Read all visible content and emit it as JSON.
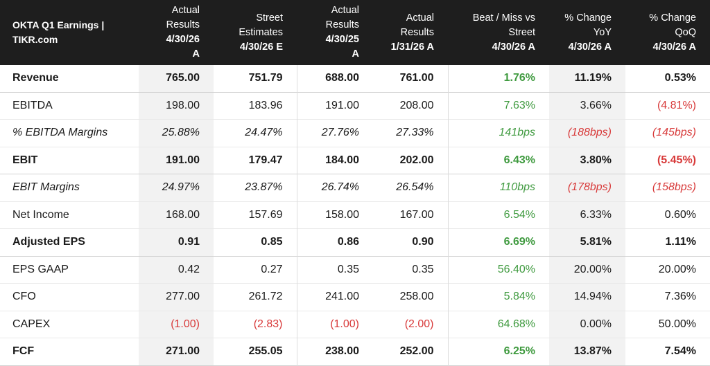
{
  "header": {
    "title_line1": "OKTA Q1 Earnings |",
    "title_line2": "TIKR.com",
    "columns": [
      {
        "line1": "Actual",
        "line2": "Results",
        "line3": "4/30/26",
        "line4": "A"
      },
      {
        "line1": "Street",
        "line2": "Estimates",
        "line3": "4/30/26 E",
        "line4": ""
      },
      {
        "line1": "Actual",
        "line2": "Results",
        "line3": "4/30/25",
        "line4": "A"
      },
      {
        "line1": "Actual",
        "line2": "Results",
        "line3": "1/31/26 A",
        "line4": ""
      },
      {
        "line1": "Beat / Miss vs",
        "line2": "Street",
        "line3": "4/30/26 A",
        "line4": ""
      },
      {
        "line1": "% Change",
        "line2": "YoY",
        "line3": "4/30/26 A",
        "line4": ""
      },
      {
        "line1": "% Change",
        "line2": "QoQ",
        "line3": "4/30/26 A",
        "line4": ""
      }
    ]
  },
  "rows": [
    {
      "label": "Revenue",
      "values": [
        "765.00",
        "751.79",
        "688.00",
        "761.00",
        "1.76%",
        "11.19%",
        "0.53%"
      ]
    },
    {
      "label": "EBITDA",
      "values": [
        "198.00",
        "183.96",
        "191.00",
        "208.00",
        "7.63%",
        "3.66%",
        "(4.81%)"
      ]
    },
    {
      "label": "% EBITDA Margins",
      "values": [
        "25.88%",
        "24.47%",
        "27.76%",
        "27.33%",
        "141bps",
        "(188bps)",
        "(145bps)"
      ]
    },
    {
      "label": "EBIT",
      "values": [
        "191.00",
        "179.47",
        "184.00",
        "202.00",
        "6.43%",
        "3.80%",
        "(5.45%)"
      ]
    },
    {
      "label": "EBIT Margins",
      "values": [
        "24.97%",
        "23.87%",
        "26.74%",
        "26.54%",
        "110bps",
        "(178bps)",
        "(158bps)"
      ]
    },
    {
      "label": "Net Income",
      "values": [
        "168.00",
        "157.69",
        "158.00",
        "167.00",
        "6.54%",
        "6.33%",
        "0.60%"
      ]
    },
    {
      "label": "Adjusted EPS",
      "values": [
        "0.91",
        "0.85",
        "0.86",
        "0.90",
        "6.69%",
        "5.81%",
        "1.11%"
      ]
    },
    {
      "label": "EPS GAAP",
      "values": [
        "0.42",
        "0.27",
        "0.35",
        "0.35",
        "56.40%",
        "20.00%",
        "20.00%"
      ]
    },
    {
      "label": "CFO",
      "values": [
        "277.00",
        "261.72",
        "241.00",
        "258.00",
        "5.84%",
        "14.94%",
        "7.36%"
      ]
    },
    {
      "label": "CAPEX",
      "values": [
        "(1.00)",
        "(2.83)",
        "(1.00)",
        "(2.00)",
        "64.68%",
        "0.00%",
        "50.00%"
      ]
    },
    {
      "label": "FCF",
      "values": [
        "271.00",
        "255.05",
        "238.00",
        "252.00",
        "6.25%",
        "13.87%",
        "7.54%"
      ]
    }
  ],
  "colors": {
    "header_bg": "#1e1e1e",
    "positive": "#3f9a3f",
    "negative": "#d83a3a",
    "shade": "#f2f2f2"
  }
}
